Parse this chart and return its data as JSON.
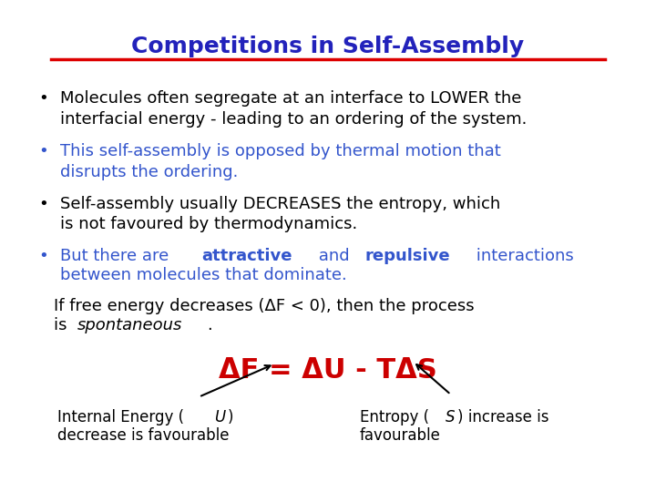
{
  "background_color": "#ffffff",
  "title": "Competitions in Self-Assembly",
  "title_color": "#2222bb",
  "title_underline_color": "#dd0000",
  "bullet1_text": "Molecules often segregate at an interface to LOWER the\ninterfacial energy - leading to an ordering of the system.",
  "bullet1_color": "#000000",
  "bullet2_text": "This self-assembly is opposed by thermal motion that\ndisrupts the ordering.",
  "bullet2_color": "#3355cc",
  "bullet3_text": "Self-assembly usually DECREASES the entropy, which\nis not favoured by thermodynamics.",
  "bullet3_color": "#000000",
  "bullet4_pre": "But there are ",
  "bullet4_attractive": "attractive",
  "bullet4_mid": " and ",
  "bullet4_repulsive": "repulsive",
  "bullet4_post": " interactions",
  "bullet4_line2": "between molecules that dominate.",
  "bullet4_color": "#3355cc",
  "freetext1": "If free energy decreases (ΔF < 0), then the process",
  "freetext2_pre": "is ",
  "freetext2_italic": "spontaneous",
  "freetext2_end": ".",
  "freetext_color": "#000000",
  "formula": "ΔF = ΔU - TΔS",
  "formula_color": "#cc0000",
  "label_left1": "Internal Energy (",
  "label_left_it": "U",
  "label_left1_end": ")",
  "label_left2": "decrease is favourable",
  "label_right1": "Entropy (",
  "label_right_it": "S",
  "label_right1_end": ") increase is",
  "label_right2": "favourable",
  "label_color": "#000000",
  "title_fontsize": 18,
  "text_fontsize": 13,
  "formula_fontsize": 22,
  "label_fontsize": 12
}
